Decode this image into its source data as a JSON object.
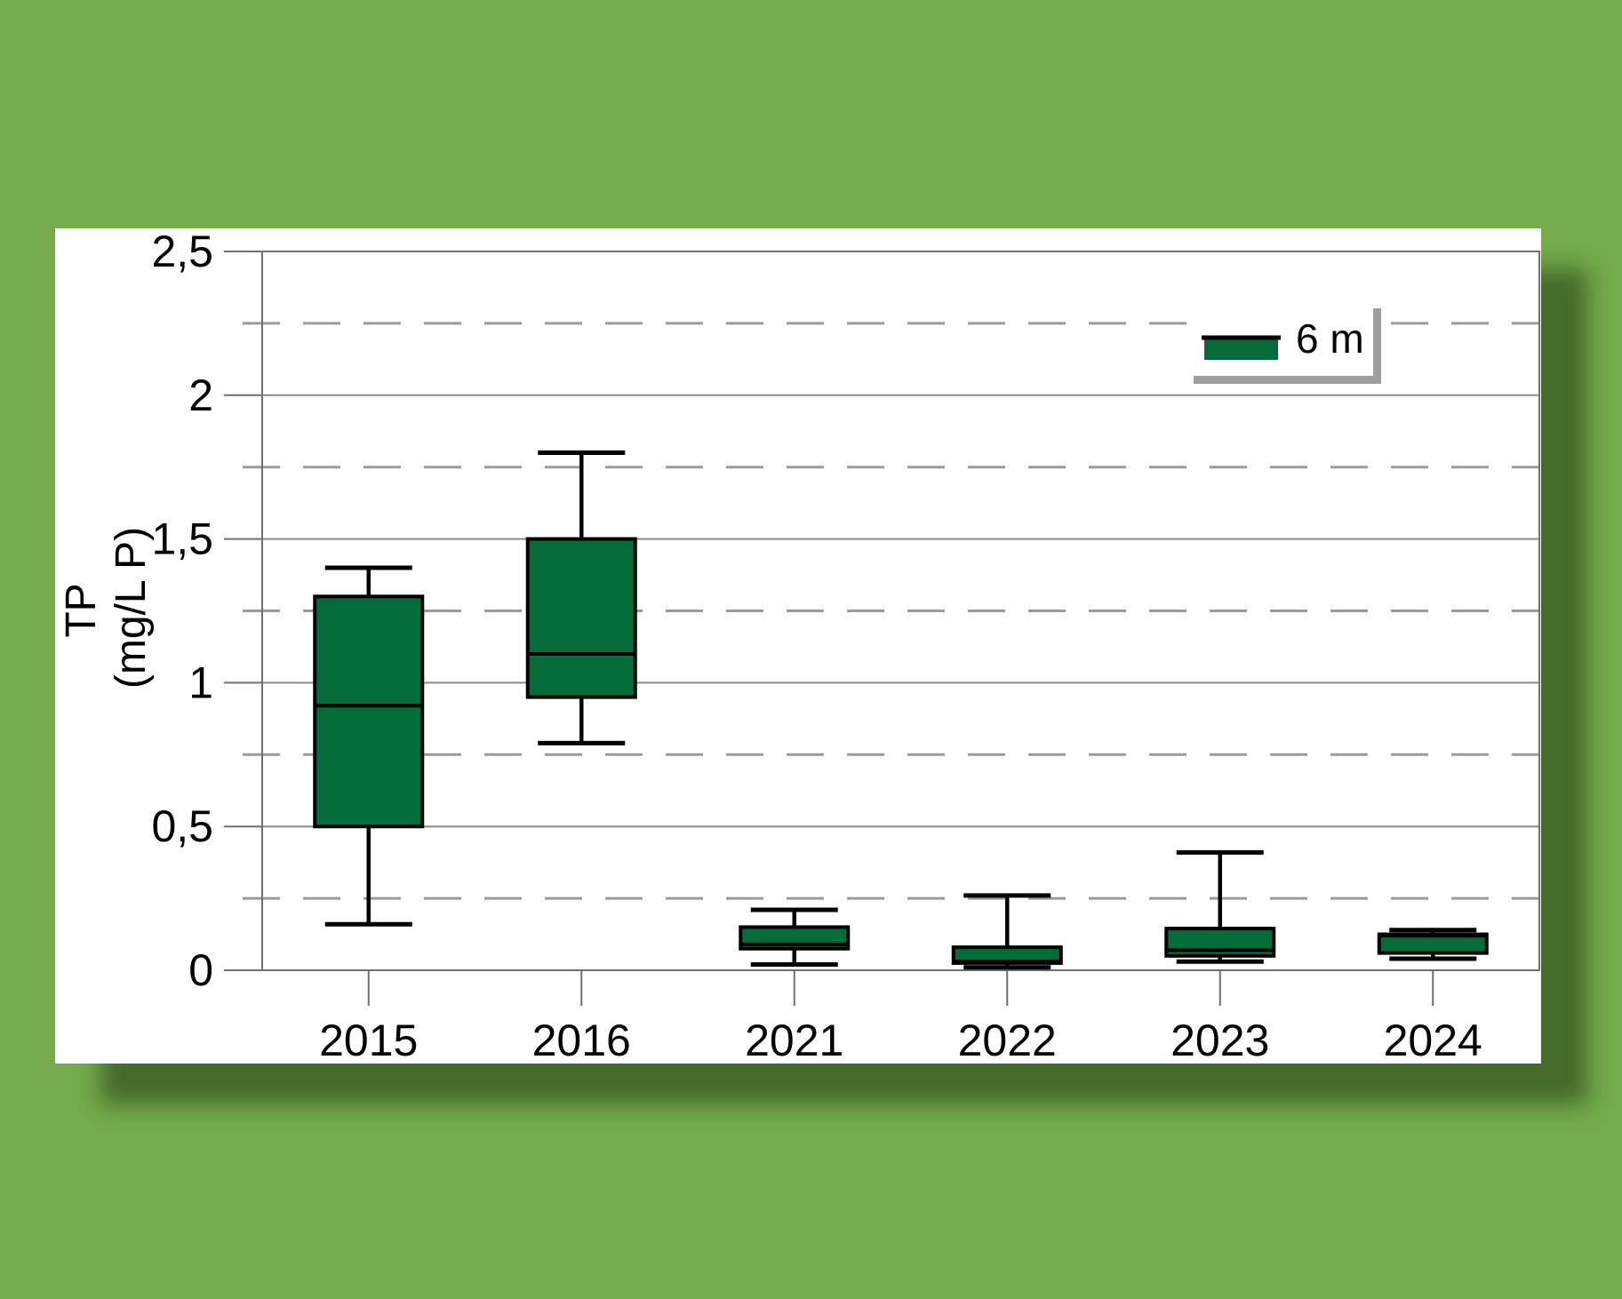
{
  "colors": {
    "background": "#75ab4c",
    "card": "#ffffff",
    "box_fill": "#056c39",
    "box_stroke": "#000000",
    "grid_major": "#8a8a8a",
    "grid_minor": "#9a9a9a",
    "frame": "#6f6f6f",
    "legend_shadow": "#9e9e9e",
    "text": "#000000"
  },
  "chart_data": {
    "type": "box",
    "title": "",
    "xlabel": "",
    "ylabel": "TP (mg/L P)",
    "ylabel_lines": [
      "TP",
      "(mg/L P)"
    ],
    "categories": [
      "2015",
      "2016",
      "2021",
      "2022",
      "2023",
      "2024"
    ],
    "ylim": [
      0,
      2.5
    ],
    "y_ticks": [
      0,
      0.5,
      1,
      1.5,
      2,
      2.5
    ],
    "y_tick_labels": [
      "0",
      "0,5",
      "1",
      "1,5",
      "2",
      "2,5"
    ],
    "y_minor_ticks": [
      0.25,
      0.75,
      1.25,
      1.75,
      2.25
    ],
    "grid": "major horizontal solid, minor horizontal dashed",
    "legend": {
      "position": "top-right",
      "entries": [
        {
          "label": "6 m",
          "color": "#056c39"
        }
      ]
    },
    "series": [
      {
        "name": "6 m",
        "boxes": [
          {
            "category": "2015",
            "min": 0.16,
            "q1": 0.5,
            "median": 0.92,
            "q3": 1.3,
            "max": 1.4
          },
          {
            "category": "2016",
            "min": 0.79,
            "q1": 0.95,
            "median": 1.1,
            "q3": 1.5,
            "max": 1.8
          },
          {
            "category": "2021",
            "min": 0.02,
            "q1": 0.075,
            "median": 0.09,
            "q3": 0.15,
            "max": 0.21
          },
          {
            "category": "2022",
            "min": 0.01,
            "q1": 0.025,
            "median": 0.03,
            "q3": 0.08,
            "max": 0.26
          },
          {
            "category": "2023",
            "min": 0.03,
            "q1": 0.05,
            "median": 0.07,
            "q3": 0.145,
            "max": 0.41
          },
          {
            "category": "2024",
            "min": 0.04,
            "q1": 0.06,
            "median": 0.12,
            "q3": 0.125,
            "max": 0.14
          }
        ]
      }
    ]
  }
}
